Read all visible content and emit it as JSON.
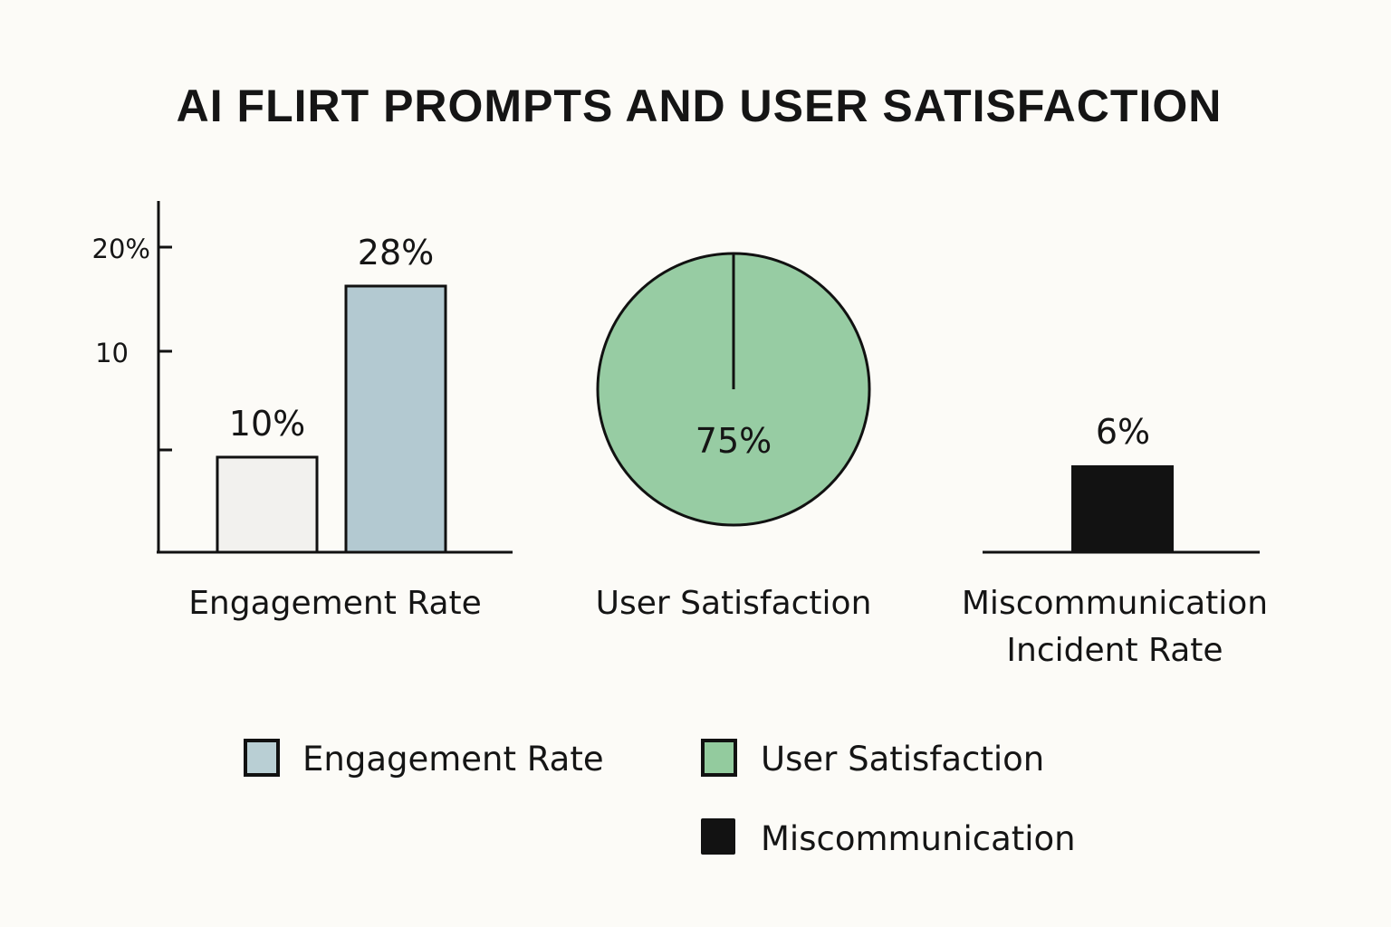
{
  "chart_data": [
    {
      "type": "bar",
      "title": "AI FLIRT PROMPTS AND USER SATISFACTION",
      "xlabel": "Engagement Rate",
      "y_tick_labels": [
        "20%",
        "10",
        ""
      ],
      "values": [
        10,
        28
      ],
      "data_labels": [
        "10%",
        "28%"
      ],
      "colors": [
        "#f2f1ee",
        "#b3c9d1"
      ],
      "grid": false
    },
    {
      "type": "pie",
      "xlabel": "User Satisfaction",
      "values": [
        75
      ],
      "data_labels": [
        "75%"
      ],
      "colors": [
        "#97cca3"
      ]
    },
    {
      "type": "bar",
      "xlabel_lines": [
        "Miscommunication",
        "Incident Rate"
      ],
      "values": [
        6
      ],
      "data_labels": [
        "6%"
      ],
      "colors": [
        "#121212"
      ]
    }
  ],
  "legend": {
    "placement": "bottom",
    "items": [
      {
        "label": "Engagement Rate",
        "color": "#b9cfd4"
      },
      {
        "label": "User Satisfaction",
        "color": "#93cb9e"
      },
      {
        "label": "Miscommunication",
        "color": "#121212"
      }
    ]
  }
}
